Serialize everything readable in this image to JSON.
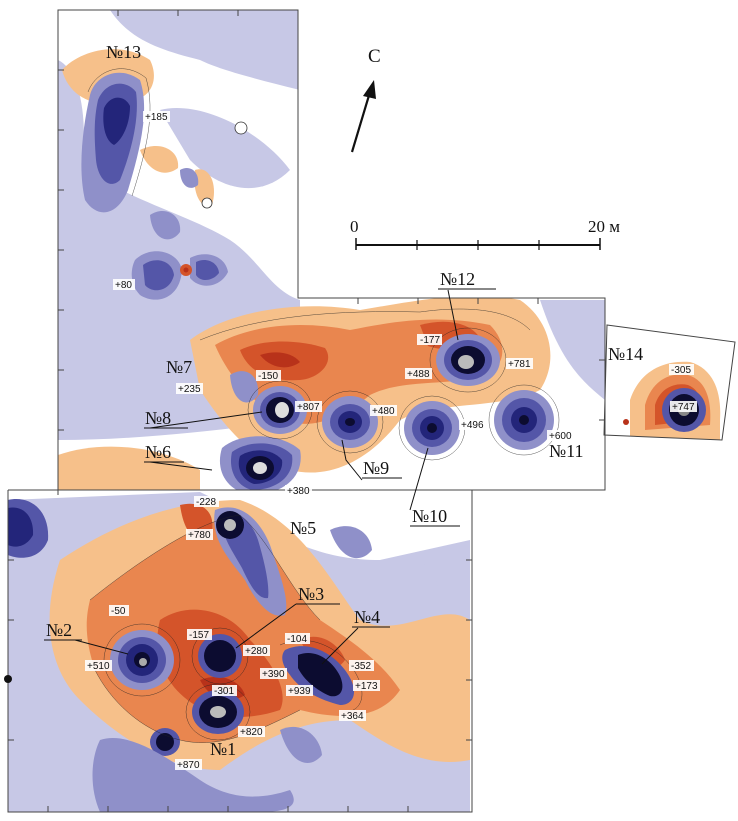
{
  "north": {
    "label": "С"
  },
  "scale": {
    "start": "0",
    "end": "20 м"
  },
  "colors": {
    "background": "#ffffff",
    "neg_light": "#f6c08a",
    "neg_mid": "#e9864f",
    "neg_strong": "#d4542a",
    "neg_deep": "#b8321a",
    "pos_light": "#c7c8e6",
    "pos_mid": "#8f90c9",
    "pos_strong": "#5456a8",
    "pos_deep": "#23257a",
    "core": "#0c0c30",
    "contour": "#222222",
    "frame": "#444444"
  },
  "sites": [
    {
      "id": "13",
      "label": "№13"
    },
    {
      "id": "12",
      "label": "№12"
    },
    {
      "id": "14",
      "label": "№14"
    },
    {
      "id": "7",
      "label": "№7"
    },
    {
      "id": "8",
      "label": "№8"
    },
    {
      "id": "6",
      "label": "№6"
    },
    {
      "id": "9",
      "label": "№9"
    },
    {
      "id": "10",
      "label": "№10"
    },
    {
      "id": "11",
      "label": "№11"
    },
    {
      "id": "5",
      "label": "№5"
    },
    {
      "id": "3",
      "label": "№3"
    },
    {
      "id": "4",
      "label": "№4"
    },
    {
      "id": "2",
      "label": "№2"
    },
    {
      "id": "1",
      "label": "№1"
    }
  ],
  "values": [
    {
      "id": "v185",
      "text": "+185"
    },
    {
      "id": "v80",
      "text": "+80"
    },
    {
      "id": "v177",
      "text": "-177"
    },
    {
      "id": "v781",
      "text": "+781"
    },
    {
      "id": "v488",
      "text": "+488"
    },
    {
      "id": "v305",
      "text": "-305"
    },
    {
      "id": "v747",
      "text": "+747"
    },
    {
      "id": "v235",
      "text": "+235"
    },
    {
      "id": "v150",
      "text": "-150"
    },
    {
      "id": "v807",
      "text": "+807"
    },
    {
      "id": "v480",
      "text": "+480"
    },
    {
      "id": "v496",
      "text": "+496"
    },
    {
      "id": "v600",
      "text": "+600"
    },
    {
      "id": "v380",
      "text": "+380"
    },
    {
      "id": "v228",
      "text": "-228"
    },
    {
      "id": "v780",
      "text": "+780"
    },
    {
      "id": "v50",
      "text": "-50"
    },
    {
      "id": "v157",
      "text": "-157"
    },
    {
      "id": "v104",
      "text": "-104"
    },
    {
      "id": "v510",
      "text": "+510"
    },
    {
      "id": "v280",
      "text": "+280"
    },
    {
      "id": "v352",
      "text": "-352"
    },
    {
      "id": "v390",
      "text": "+390"
    },
    {
      "id": "v173",
      "text": "+173"
    },
    {
      "id": "v301",
      "text": "-301"
    },
    {
      "id": "v939",
      "text": "+939"
    },
    {
      "id": "v364",
      "text": "+364"
    },
    {
      "id": "v820",
      "text": "+820"
    },
    {
      "id": "v870",
      "text": "+870"
    }
  ]
}
